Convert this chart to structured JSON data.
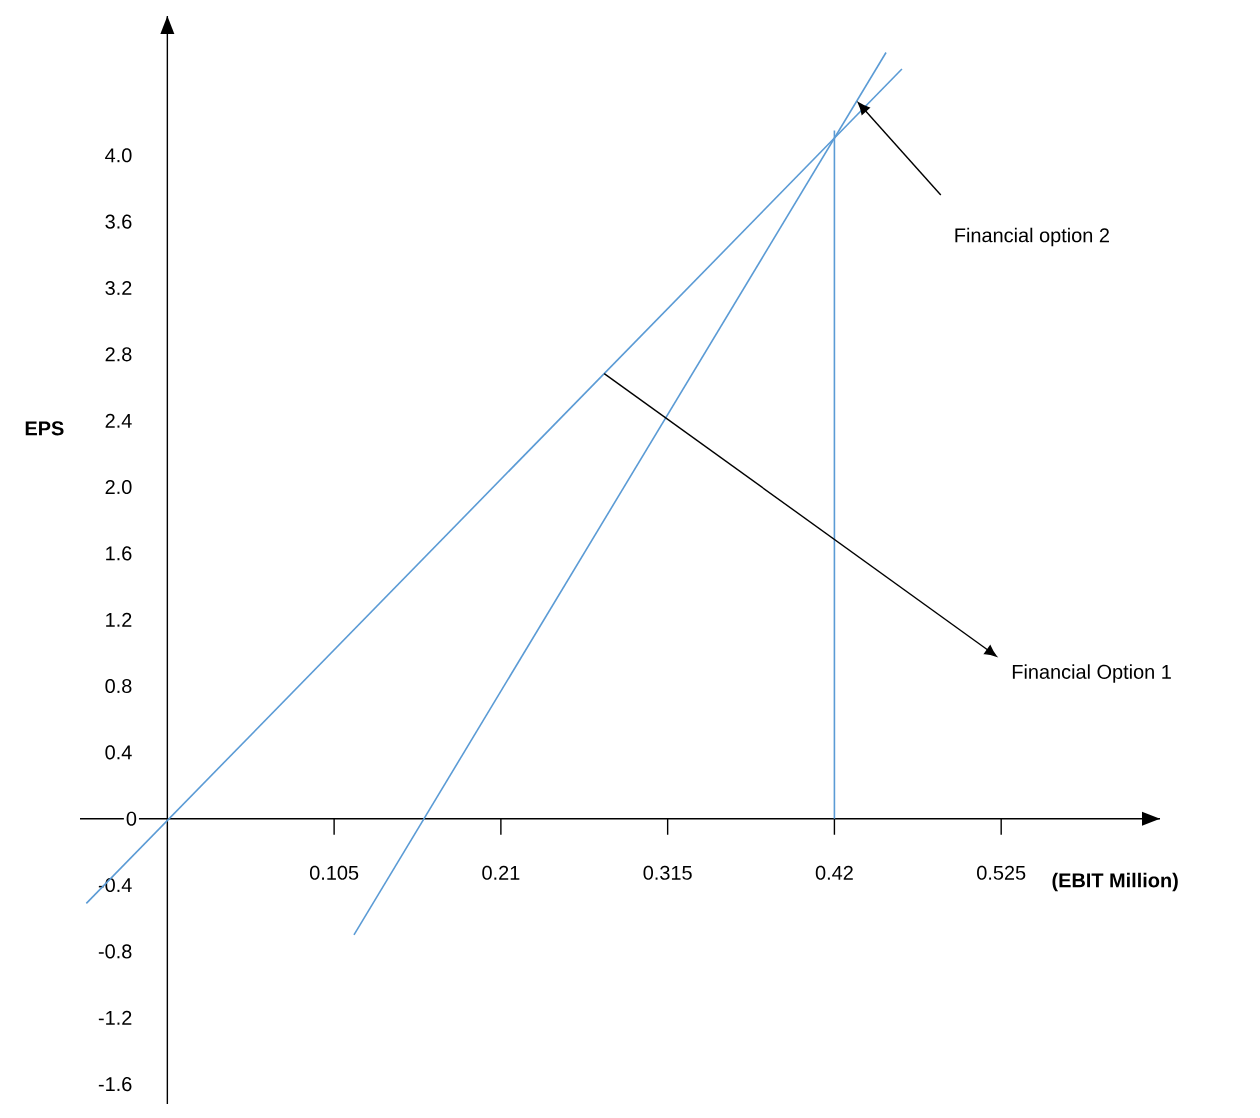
{
  "chart_data": {
    "type": "line",
    "xlabel": "(EBIT Million)",
    "ylabel": "EPS",
    "xlim": [
      -0.055,
      0.625
    ],
    "ylim": [
      -1.72,
      4.84
    ],
    "xticks": [
      0.105,
      0.21,
      0.315,
      0.42,
      0.525
    ],
    "yticks": [
      -1.6,
      -1.2,
      -0.8,
      -0.4,
      0,
      0.4,
      0.8,
      1.2,
      1.6,
      {
        "value": 2,
        "label": "2.0"
      },
      2.4,
      2.8,
      3.2,
      3.6,
      {
        "value": 4,
        "label": "4.0"
      }
    ],
    "series": [
      {
        "color": "#5b9bd5",
        "x": [
          -0.051,
          0.4625
        ],
        "values": [
          -0.51,
          4.52
        ]
      },
      {
        "color": "#5b9bd5",
        "x": [
          0.1175,
          0.4525
        ],
        "values": [
          -0.7,
          4.62
        ]
      },
      {
        "color": "#5b9bd5",
        "x": [
          0.42,
          0.42
        ],
        "values": [
          0,
          4.15
        ]
      }
    ],
    "annotations": [
      "Financial Option 1",
      "Financial option 2"
    ]
  }
}
